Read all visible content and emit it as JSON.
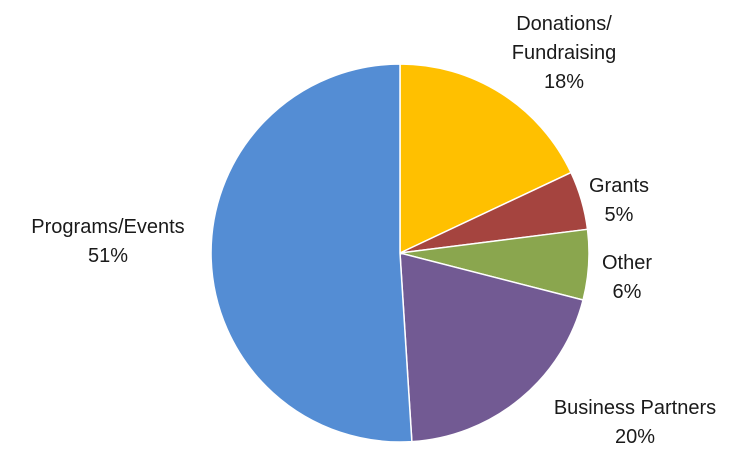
{
  "chart_data": {
    "type": "pie",
    "title": "",
    "start_angle_deg": 0,
    "direction": "clockwise",
    "slices": [
      {
        "label_lines": [
          "Donations/",
          "Fundraising"
        ],
        "category": "Donations/ Fundraising",
        "value": 18,
        "percent_label": "18%",
        "color": "#FFC000"
      },
      {
        "label_lines": [
          "Grants"
        ],
        "category": "Grants",
        "value": 5,
        "percent_label": "5%",
        "color": "#A5443F"
      },
      {
        "label_lines": [
          "Other"
        ],
        "category": "Other",
        "value": 6,
        "percent_label": "6%",
        "color": "#8AA64E"
      },
      {
        "label_lines": [
          "Business Partners"
        ],
        "category": "Business Partners",
        "value": 20,
        "percent_label": "20%",
        "color": "#725A93"
      },
      {
        "label_lines": [
          "Programs/Events"
        ],
        "category": "Programs/Events",
        "value": 51,
        "percent_label": "51%",
        "color": "#548DD4"
      }
    ]
  }
}
